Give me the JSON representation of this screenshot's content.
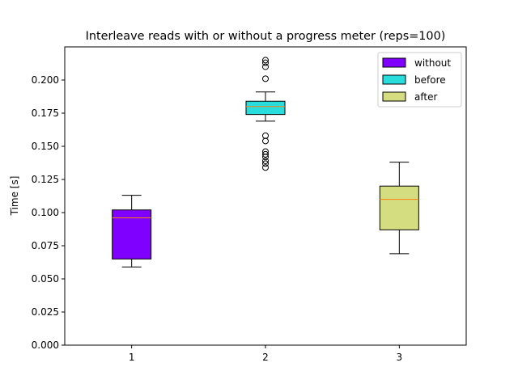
{
  "chart_data": {
    "type": "box",
    "title": "Interleave reads with or without a progress meter (reps=100)",
    "xlabel": "",
    "ylabel": "Time [s]",
    "ylim": [
      0,
      0.225
    ],
    "xlim": [
      0.5,
      3.5
    ],
    "yticks": [
      0.0,
      0.025,
      0.05,
      0.075,
      0.1,
      0.125,
      0.15,
      0.175,
      0.2
    ],
    "ytick_labels": [
      "0.000",
      "0.025",
      "0.050",
      "0.075",
      "0.100",
      "0.125",
      "0.150",
      "0.175",
      "0.200"
    ],
    "xticks": [
      1,
      2,
      3
    ],
    "xtick_labels": [
      "1",
      "2",
      "3"
    ],
    "legend_position": "top-right",
    "grid": false,
    "series": [
      {
        "name": "without",
        "x": 1,
        "color": "#8000ff",
        "whisker_low": 0.059,
        "q1": 0.065,
        "median": 0.096,
        "q3": 0.102,
        "whisker_high": 0.113,
        "outliers": []
      },
      {
        "name": "before",
        "x": 2,
        "color": "#2adddd",
        "whisker_low": 0.169,
        "q1": 0.174,
        "median": 0.18,
        "q3": 0.184,
        "whisker_high": 0.191,
        "outliers": [
          0.215,
          0.213,
          0.21,
          0.201,
          0.158,
          0.154,
          0.146,
          0.144,
          0.142,
          0.139,
          0.137,
          0.134
        ]
      },
      {
        "name": "after",
        "x": 3,
        "color": "#d4dd80",
        "whisker_low": 0.069,
        "q1": 0.087,
        "median": 0.11,
        "q3": 0.12,
        "whisker_high": 0.138,
        "outliers": []
      }
    ],
    "median_color": "#ff7f0e"
  }
}
